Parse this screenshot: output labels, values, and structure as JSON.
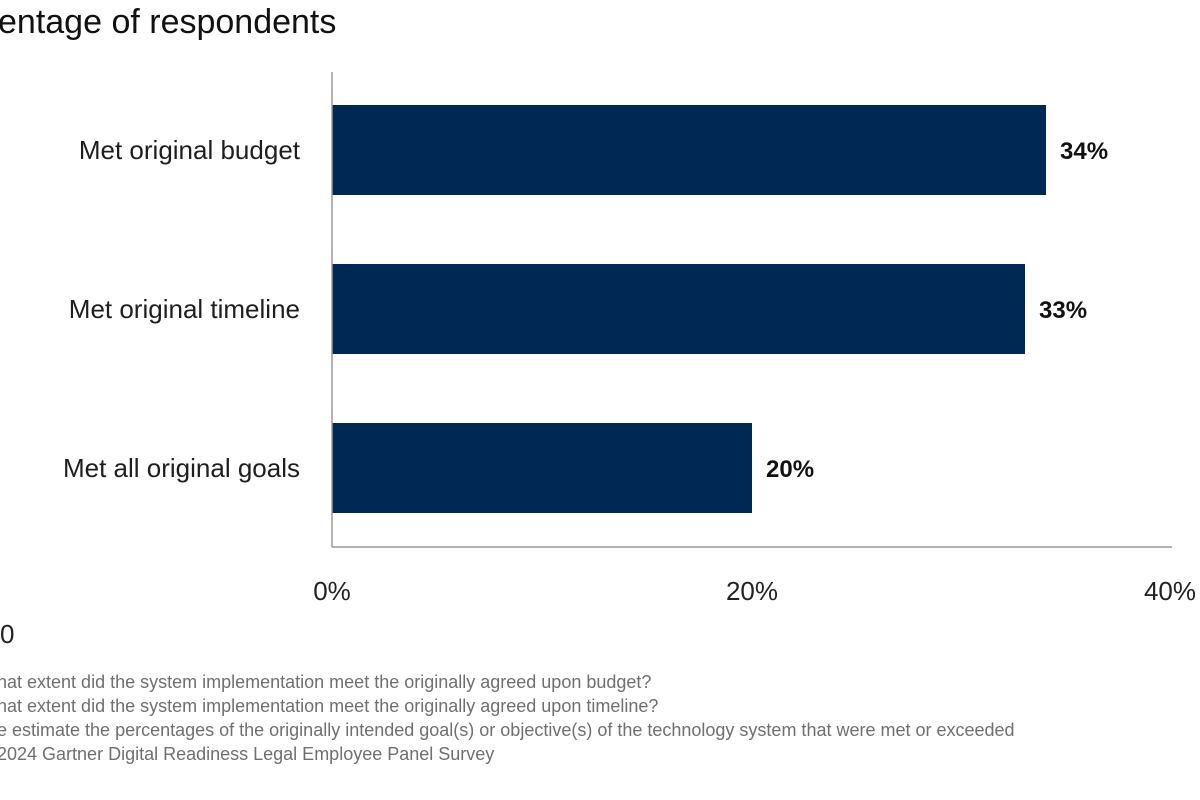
{
  "chart_data": {
    "type": "bar",
    "orientation": "horizontal",
    "title": "entage of respondents",
    "categories": [
      "Met original budget",
      "Met original timeline",
      "Met all original goals"
    ],
    "values": [
      34,
      33,
      20
    ],
    "value_labels": [
      "34%",
      "33%",
      "20%"
    ],
    "xlim": [
      0,
      40
    ],
    "xticks": [
      0,
      20,
      40
    ],
    "xtick_labels": [
      "0%",
      "20%",
      "40%"
    ],
    "xlabel": "",
    "ylabel": "",
    "grid": false,
    "bar_color": "#002855"
  },
  "sample_size": "0",
  "footnotes": [
    "hat extent did the system implementation meet the originally agreed upon budget?",
    "hat extent did the system implementation meet the originally agreed upon timeline?",
    "e estimate the percentages of the originally intended goal(s) or objective(s) of the technology system that were met or exceeded",
    " 2024 Gartner Digital Readiness Legal Employee Panel Survey"
  ]
}
